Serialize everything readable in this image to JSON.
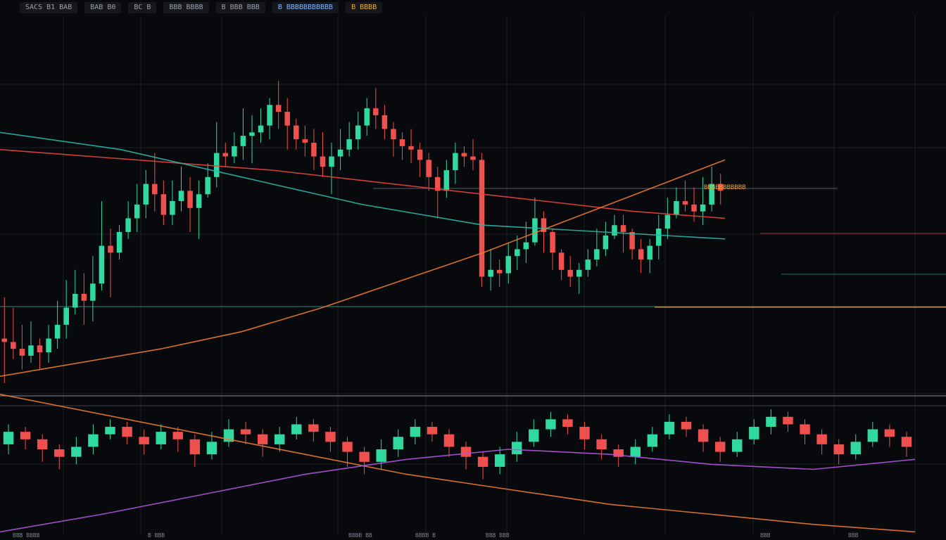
{
  "toolbar": {
    "items": [
      "SACS B1 BAB",
      "BAB B0",
      "BC B",
      "BBB BBBB",
      "B BBB BBB",
      "B BBBBBBBBBBB",
      "B BBBB"
    ]
  },
  "price_label": "BBBBBBBBBBB",
  "axis_labels": [
    "BBB BBBB",
    "B BBB",
    "BBBB BB",
    "BBBB B",
    "BBB BBB",
    "BBB",
    "BBB"
  ],
  "colors": {
    "background": "#08090c",
    "grid": "#1b1e25",
    "bull": "#2fd9a0",
    "bear": "#f0504d",
    "orange_line": "#f07a30",
    "purple_line": "#b255e0",
    "teal_line": "#2ab8a8",
    "red_line": "#e8453c"
  },
  "chart_data": {
    "type": "candlestick",
    "panels": [
      {
        "name": "",
        "candles": [
          [
            31,
            30,
            43,
            18
          ],
          [
            30,
            28,
            40,
            25
          ],
          [
            28,
            26,
            35,
            22
          ],
          [
            26,
            29,
            36,
            24
          ],
          [
            29,
            27,
            31,
            22
          ],
          [
            27,
            31,
            35,
            24
          ],
          [
            31,
            35,
            42,
            28
          ],
          [
            35,
            40,
            48,
            31
          ],
          [
            40,
            44,
            51,
            38
          ],
          [
            44,
            42,
            50,
            35
          ],
          [
            42,
            47,
            55,
            36
          ],
          [
            47,
            58,
            71,
            45
          ],
          [
            58,
            56,
            63,
            43
          ],
          [
            56,
            62,
            64,
            54
          ],
          [
            62,
            66,
            71,
            60
          ],
          [
            66,
            70,
            76,
            62
          ],
          [
            70,
            76,
            80,
            66
          ],
          [
            76,
            73,
            85,
            68
          ],
          [
            73,
            67,
            77,
            64
          ],
          [
            67,
            71,
            77,
            64
          ],
          [
            71,
            74,
            81,
            68
          ],
          [
            74,
            69,
            78,
            62
          ],
          [
            69,
            73,
            77,
            60
          ],
          [
            73,
            78,
            82,
            72
          ],
          [
            78,
            85,
            94,
            75
          ],
          [
            85,
            84,
            88,
            81
          ],
          [
            84,
            87,
            91,
            82
          ],
          [
            87,
            90,
            98,
            83
          ],
          [
            90,
            91,
            96,
            82
          ],
          [
            91,
            93,
            98,
            88
          ],
          [
            93,
            99,
            101,
            89
          ],
          [
            99,
            97,
            106,
            92
          ],
          [
            97,
            93,
            101,
            86
          ],
          [
            93,
            89,
            95,
            86
          ],
          [
            89,
            88,
            93,
            84
          ],
          [
            88,
            84,
            92,
            80
          ],
          [
            84,
            81,
            91,
            78
          ],
          [
            81,
            84,
            88,
            73
          ],
          [
            84,
            86,
            92,
            80
          ],
          [
            86,
            89,
            94,
            84
          ],
          [
            89,
            93,
            97,
            86
          ],
          [
            93,
            98,
            101,
            90
          ],
          [
            98,
            96,
            104,
            92
          ],
          [
            96,
            92,
            99,
            89
          ],
          [
            92,
            89,
            94,
            84
          ],
          [
            89,
            87,
            91,
            83
          ],
          [
            87,
            86,
            92,
            82
          ],
          [
            86,
            83,
            88,
            78
          ],
          [
            83,
            78,
            85,
            74
          ],
          [
            78,
            74,
            81,
            66
          ],
          [
            74,
            80,
            83,
            72
          ],
          [
            80,
            85,
            88,
            76
          ],
          [
            85,
            84,
            87,
            81
          ],
          [
            84,
            83,
            89,
            80
          ],
          [
            83,
            49,
            85,
            46
          ],
          [
            49,
            51,
            57,
            45
          ],
          [
            51,
            50,
            54,
            46
          ],
          [
            50,
            55,
            59,
            47
          ],
          [
            55,
            57,
            61,
            51
          ],
          [
            57,
            59,
            65,
            53
          ],
          [
            59,
            66,
            72,
            58
          ],
          [
            66,
            62,
            68,
            56
          ],
          [
            62,
            56,
            63,
            51
          ],
          [
            56,
            51,
            57,
            48
          ],
          [
            51,
            49,
            55,
            46
          ],
          [
            49,
            51,
            53,
            44
          ],
          [
            51,
            54,
            57,
            49
          ],
          [
            54,
            57,
            63,
            52
          ],
          [
            57,
            61,
            65,
            55
          ],
          [
            61,
            64,
            67,
            60
          ],
          [
            64,
            62,
            67,
            56
          ],
          [
            62,
            57,
            63,
            54
          ],
          [
            57,
            54,
            60,
            50
          ],
          [
            54,
            58,
            60,
            50
          ],
          [
            58,
            63,
            67,
            54
          ],
          [
            63,
            67,
            72,
            60
          ],
          [
            67,
            71,
            75,
            66
          ],
          [
            71,
            70,
            77,
            68
          ],
          [
            70,
            68,
            75,
            65
          ],
          [
            68,
            70,
            78,
            64
          ],
          [
            70,
            76,
            81,
            68
          ],
          [
            76,
            74,
            79,
            70
          ]
        ],
        "lines": [
          {
            "name": "",
            "color": "#e8453c",
            "values": [
              86,
              84,
              82,
              80,
              77,
              74,
              71,
              68,
              66
            ]
          },
          {
            "name": "",
            "color": "#f07a30",
            "values": [
              20,
              24,
              28,
              33,
              40,
              48,
              56,
              65,
              74,
              83
            ]
          },
          {
            "name": "",
            "color": "#2ab8a8",
            "values": [
              91,
              86,
              78,
              70,
              64,
              62,
              60
            ]
          }
        ]
      },
      {
        "name": "",
        "candles": [
          [
            40,
            45,
            48,
            36
          ],
          [
            45,
            42,
            47,
            38
          ],
          [
            42,
            38,
            44,
            33
          ],
          [
            38,
            35,
            40,
            30
          ],
          [
            35,
            39,
            43,
            32
          ],
          [
            39,
            44,
            48,
            36
          ],
          [
            44,
            47,
            50,
            42
          ],
          [
            47,
            43,
            49,
            40
          ],
          [
            43,
            40,
            46,
            36
          ],
          [
            40,
            45,
            48,
            38
          ],
          [
            45,
            42,
            47,
            37
          ],
          [
            42,
            36,
            44,
            31
          ],
          [
            36,
            41,
            45,
            34
          ],
          [
            41,
            46,
            50,
            39
          ],
          [
            46,
            44,
            49,
            40
          ],
          [
            44,
            40,
            46,
            35
          ],
          [
            40,
            44,
            47,
            37
          ],
          [
            44,
            48,
            51,
            42
          ],
          [
            48,
            45,
            50,
            41
          ],
          [
            45,
            41,
            47,
            37
          ],
          [
            41,
            37,
            43,
            31
          ],
          [
            37,
            33,
            39,
            28
          ],
          [
            33,
            38,
            42,
            30
          ],
          [
            38,
            43,
            46,
            35
          ],
          [
            43,
            47,
            50,
            40
          ],
          [
            47,
            44,
            49,
            41
          ],
          [
            44,
            39,
            46,
            35
          ],
          [
            39,
            35,
            41,
            30
          ],
          [
            35,
            31,
            37,
            26
          ],
          [
            31,
            36,
            39,
            28
          ],
          [
            36,
            41,
            45,
            33
          ],
          [
            41,
            46,
            50,
            39
          ],
          [
            46,
            50,
            53,
            43
          ],
          [
            50,
            47,
            52,
            44
          ],
          [
            47,
            42,
            49,
            38
          ],
          [
            42,
            38,
            44,
            34
          ],
          [
            38,
            35,
            40,
            31
          ],
          [
            35,
            39,
            42,
            32
          ],
          [
            39,
            44,
            47,
            37
          ],
          [
            44,
            49,
            52,
            42
          ],
          [
            49,
            46,
            51,
            43
          ],
          [
            46,
            41,
            48,
            37
          ],
          [
            41,
            37,
            43,
            33
          ],
          [
            37,
            42,
            45,
            35
          ],
          [
            42,
            47,
            50,
            40
          ],
          [
            47,
            51,
            54,
            44
          ],
          [
            51,
            48,
            53,
            45
          ],
          [
            48,
            44,
            50,
            40
          ],
          [
            44,
            40,
            46,
            36
          ],
          [
            40,
            36,
            42,
            32
          ],
          [
            36,
            41,
            44,
            34
          ],
          [
            41,
            46,
            49,
            39
          ],
          [
            46,
            43,
            48,
            39
          ],
          [
            43,
            39,
            45,
            35
          ]
        ],
        "lines": [
          {
            "name": "",
            "color": "#f07a30",
            "values": [
              60,
              52,
              44,
              36,
              28,
              22,
              16,
              12,
              8,
              5
            ]
          },
          {
            "name": "",
            "color": "#b255e0",
            "values": [
              5,
              12,
              20,
              28,
              34,
              38,
              36,
              32,
              30,
              34
            ]
          }
        ]
      }
    ]
  }
}
